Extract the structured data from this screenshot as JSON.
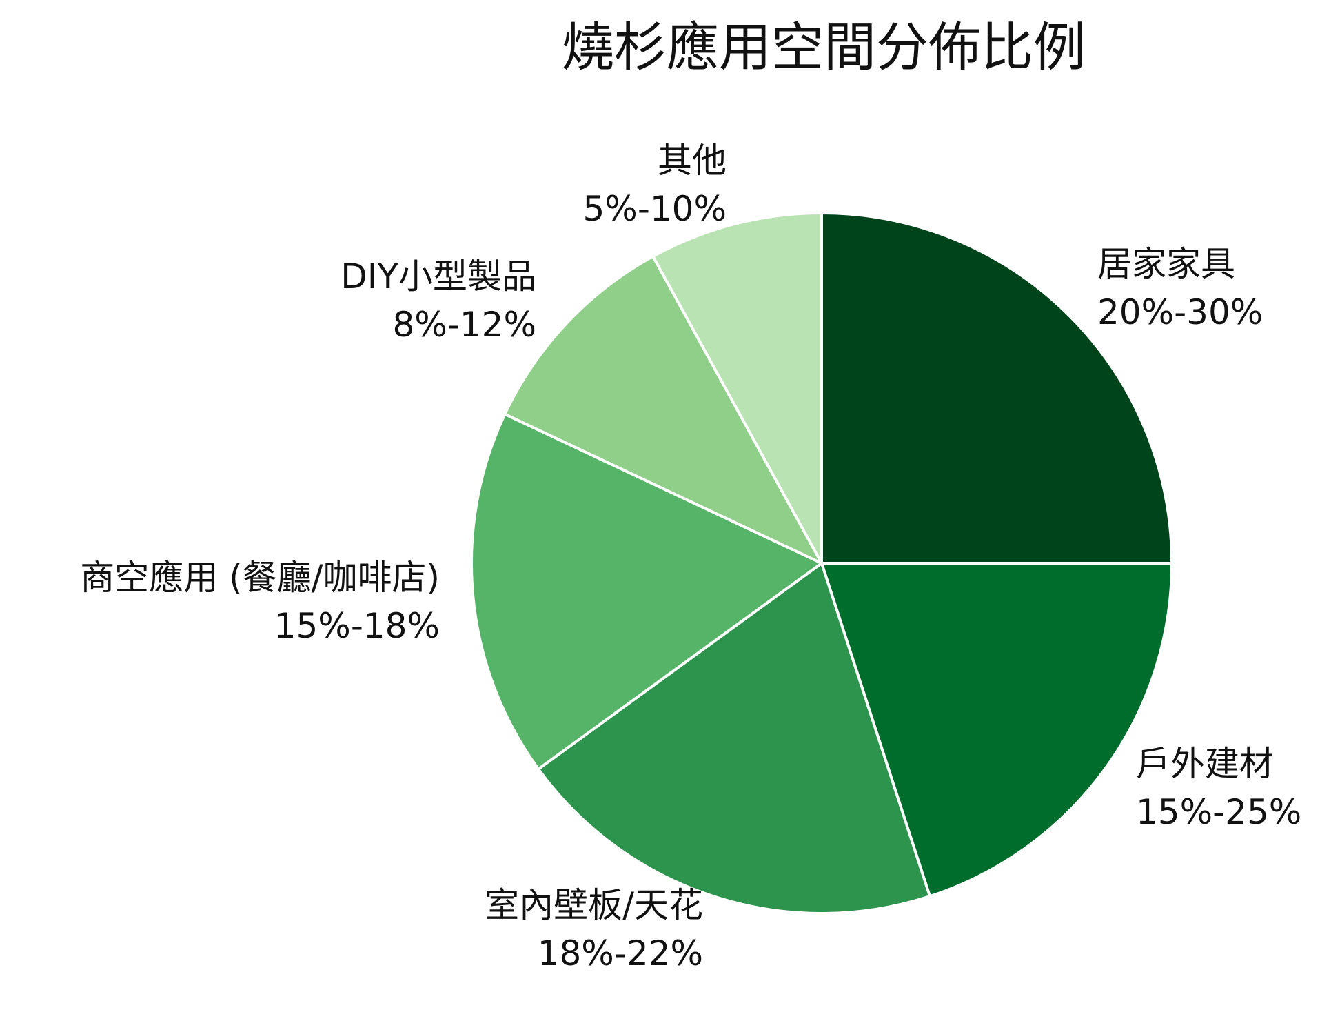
{
  "chart_data": {
    "type": "pie",
    "title": "燒杉應用空間分佈比例",
    "start_angle_deg": 90,
    "direction": "clockwise",
    "slices": [
      {
        "label": "居家家具",
        "range": "20%-30%",
        "value": 25,
        "color": "#00441b"
      },
      {
        "label": "戶外建材",
        "range": "15%-25%",
        "value": 20,
        "color": "#006d2c"
      },
      {
        "label": "室內壁板/天花",
        "range": "18%-22%",
        "value": 20,
        "color": "#2c944d"
      },
      {
        "label": "商空應用 (餐廳/咖啡店)",
        "range": "15%-18%",
        "value": 17,
        "color": "#56b468"
      },
      {
        "label": "DIY小型製品",
        "range": "8%-12%",
        "value": 10,
        "color": "#8fcf89"
      },
      {
        "label": "其他",
        "range": "5%-10%",
        "value": 8,
        "color": "#b9e3b2"
      }
    ],
    "slice_border_color": "#ffffff"
  }
}
